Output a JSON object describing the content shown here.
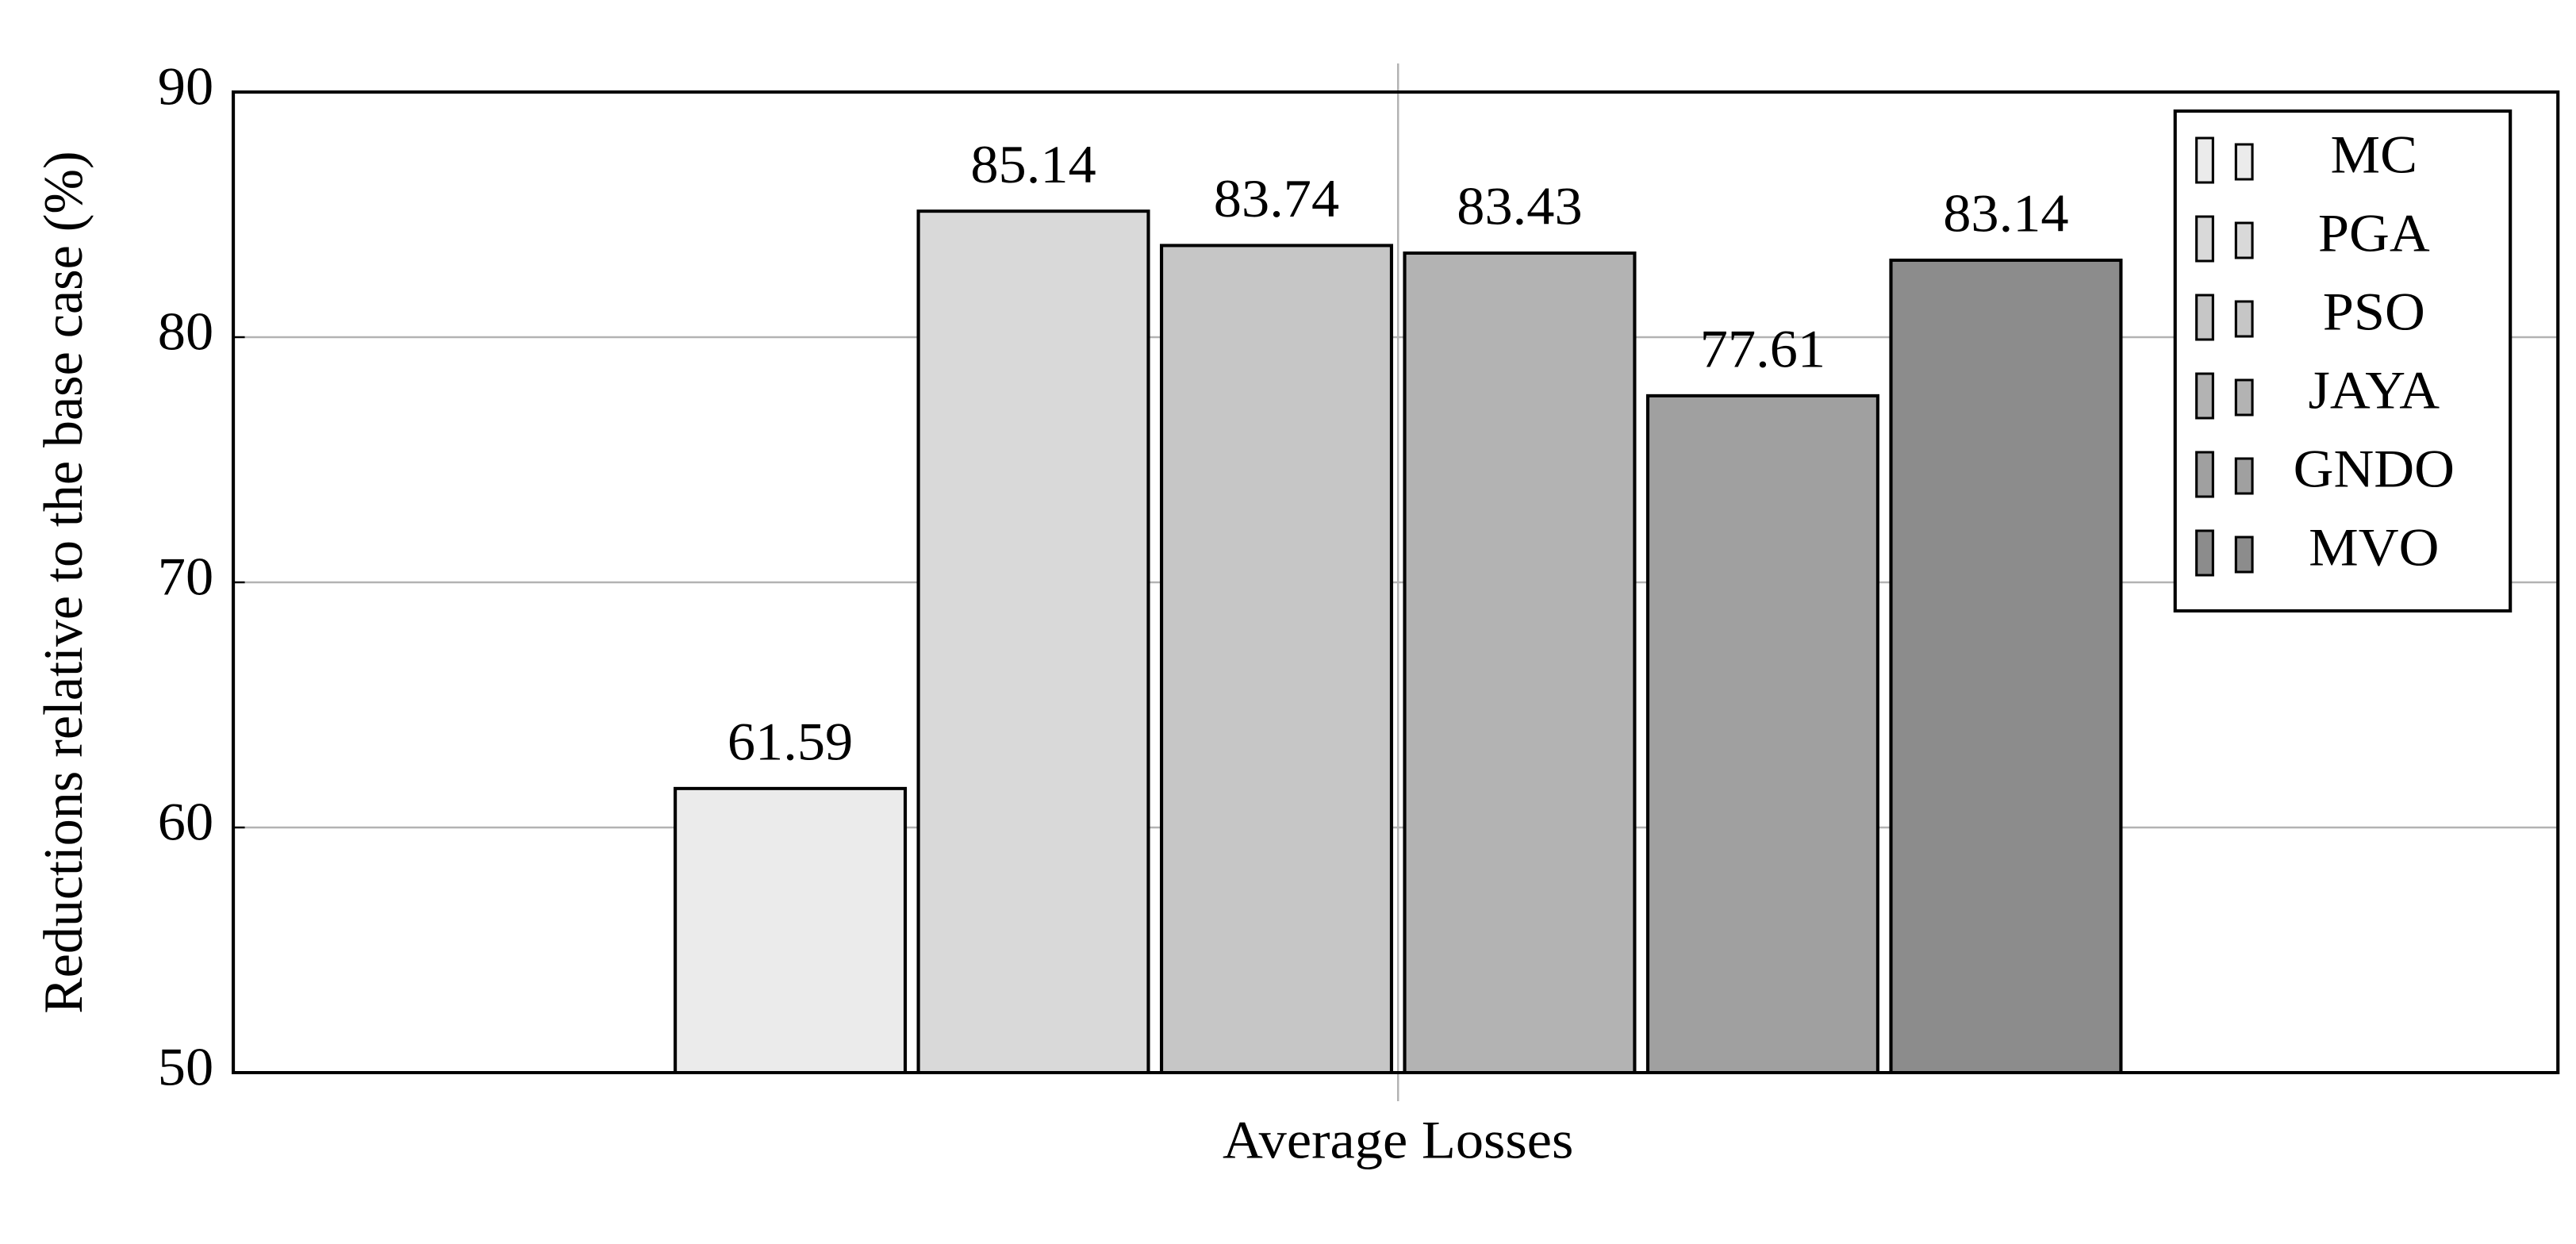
{
  "chart_data": {
    "type": "bar",
    "categories": [
      "Average Losses"
    ],
    "y_label": "Reductions relative to the base case (%)",
    "series": [
      {
        "name": "MC",
        "color": "#ebebeb",
        "values": [
          61.59
        ]
      },
      {
        "name": "PGA",
        "color": "#d9d9d9",
        "values": [
          85.14
        ]
      },
      {
        "name": "PSO",
        "color": "#c6c6c6",
        "values": [
          83.74
        ]
      },
      {
        "name": "JAYA",
        "color": "#b3b3b3",
        "values": [
          83.43
        ]
      },
      {
        "name": "GNDO",
        "color": "#a0a0a0",
        "values": [
          77.61
        ]
      },
      {
        "name": "MVO",
        "color": "#8c8c8c",
        "values": [
          83.14
        ]
      }
    ],
    "ylim": [
      50,
      90
    ],
    "yticks": [
      50,
      60,
      70,
      80,
      90
    ],
    "grid": true,
    "legend": "upper right",
    "value_labels_shown": true
  }
}
